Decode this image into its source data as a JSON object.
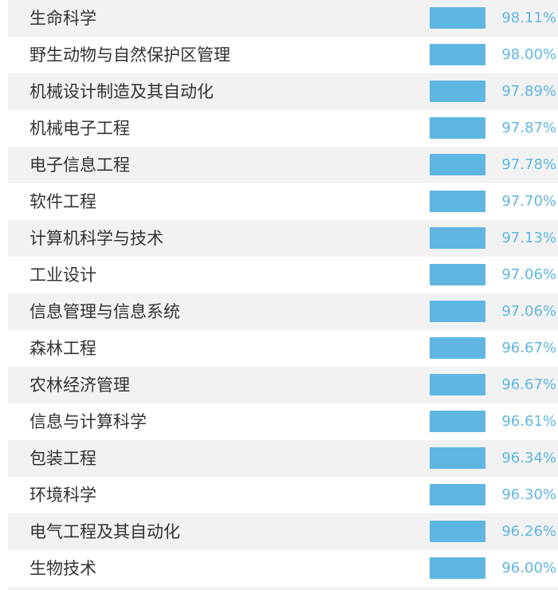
{
  "chart_data": {
    "type": "bar",
    "orientation": "horizontal",
    "categories": [
      "生命科学",
      "野生动物与自然保护区管理",
      "机械设计制造及其自动化",
      "机械电子工程",
      "电子信息工程",
      "软件工程",
      "计算机科学与技术",
      "工业设计",
      "信息管理与信息系统",
      "森林工程",
      "农林经济管理",
      "信息与计算科学",
      "包装工程",
      "环境科学",
      "电气工程及其自动化",
      "生物技术"
    ],
    "values": [
      98.11,
      98.0,
      97.89,
      97.87,
      97.78,
      97.7,
      97.13,
      97.06,
      97.06,
      96.67,
      96.67,
      96.61,
      96.34,
      96.3,
      96.26,
      96.0
    ],
    "value_labels": [
      "98.11%",
      "98.00%",
      "97.89%",
      "97.87%",
      "97.78%",
      "97.70%",
      "97.13%",
      "97.06%",
      "97.06%",
      "96.67%",
      "96.67%",
      "96.61%",
      "96.34%",
      "96.30%",
      "96.26%",
      "96.00%"
    ],
    "unit": "%",
    "bar_color": "#5fb6e3",
    "row_stripe_color": "#f2f2f2",
    "label_color": "#333333"
  }
}
